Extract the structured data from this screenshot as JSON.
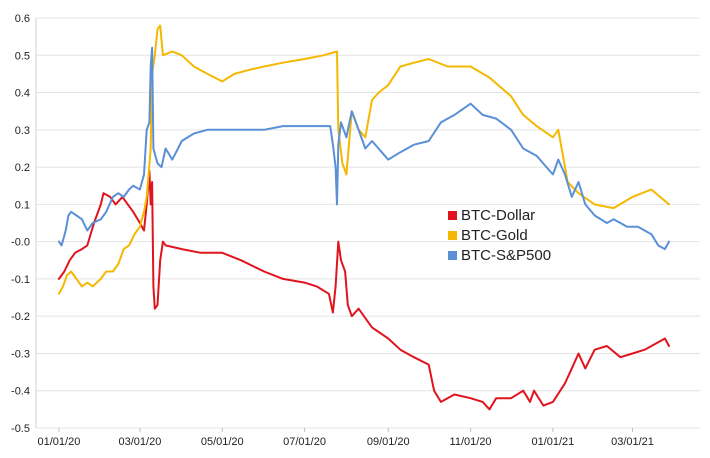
{
  "chart_data": {
    "type": "line",
    "title": "",
    "xlabel": "",
    "ylabel": "",
    "ylim": [
      -0.5,
      0.6
    ],
    "yticks": [
      0.6,
      0.5,
      0.4,
      0.3,
      0.2,
      0.1,
      0.0,
      -0.1,
      -0.2,
      -0.3,
      -0.4,
      -0.5
    ],
    "ytick_labels": [
      "0.6",
      "0.5",
      "0.4",
      "0.3",
      "0.2",
      "0.1",
      "-0.0",
      "-0.1",
      "-0.2",
      "-0.3",
      "-0.4",
      "-0.5"
    ],
    "xlim": [
      "2019-12-15",
      "2021-04-20"
    ],
    "xticks": [
      "2020-01-01",
      "2020-03-01",
      "2020-05-01",
      "2020-07-01",
      "2020-09-01",
      "2020-11-01",
      "2021-01-01",
      "2021-03-01"
    ],
    "xtick_labels": [
      "01/01/20",
      "03/01/20",
      "05/01/20",
      "07/01/20",
      "09/01/20",
      "11/01/20",
      "01/01/21",
      "03/01/21"
    ],
    "grid": "horizontal",
    "legend_position": "center-right",
    "series": [
      {
        "name": "BTC-Dollar",
        "color": "#e0141e",
        "points": [
          [
            "2020-01-01",
            -0.1
          ],
          [
            "2020-01-05",
            -0.08
          ],
          [
            "2020-01-09",
            -0.05
          ],
          [
            "2020-01-13",
            -0.03
          ],
          [
            "2020-01-18",
            -0.02
          ],
          [
            "2020-01-22",
            -0.01
          ],
          [
            "2020-01-27",
            0.05
          ],
          [
            "2020-02-01",
            0.1
          ],
          [
            "2020-02-03",
            0.13
          ],
          [
            "2020-02-08",
            0.12
          ],
          [
            "2020-02-12",
            0.1
          ],
          [
            "2020-02-17",
            0.12
          ],
          [
            "2020-02-21",
            0.1
          ],
          [
            "2020-02-25",
            0.08
          ],
          [
            "2020-03-01",
            0.05
          ],
          [
            "2020-03-04",
            0.03
          ],
          [
            "2020-03-06",
            0.1
          ],
          [
            "2020-03-08",
            0.19
          ],
          [
            "2020-03-09",
            0.1
          ],
          [
            "2020-03-10",
            0.16
          ],
          [
            "2020-03-11",
            -0.12
          ],
          [
            "2020-03-12",
            -0.18
          ],
          [
            "2020-03-14",
            -0.17
          ],
          [
            "2020-03-16",
            -0.05
          ],
          [
            "2020-03-18",
            0.0
          ],
          [
            "2020-03-20",
            -0.01
          ],
          [
            "2020-04-01",
            -0.02
          ],
          [
            "2020-04-15",
            -0.03
          ],
          [
            "2020-05-01",
            -0.03
          ],
          [
            "2020-05-15",
            -0.05
          ],
          [
            "2020-06-01",
            -0.08
          ],
          [
            "2020-06-15",
            -0.1
          ],
          [
            "2020-07-01",
            -0.11
          ],
          [
            "2020-07-10",
            -0.12
          ],
          [
            "2020-07-19",
            -0.14
          ],
          [
            "2020-07-22",
            -0.19
          ],
          [
            "2020-07-24",
            -0.12
          ],
          [
            "2020-07-26",
            0.0
          ],
          [
            "2020-07-28",
            -0.05
          ],
          [
            "2020-07-31",
            -0.08
          ],
          [
            "2020-08-02",
            -0.17
          ],
          [
            "2020-08-05",
            -0.2
          ],
          [
            "2020-08-10",
            -0.18
          ],
          [
            "2020-08-20",
            -0.23
          ],
          [
            "2020-09-01",
            -0.26
          ],
          [
            "2020-09-10",
            -0.29
          ],
          [
            "2020-09-20",
            -0.31
          ],
          [
            "2020-10-01",
            -0.33
          ],
          [
            "2020-10-05",
            -0.4
          ],
          [
            "2020-10-10",
            -0.43
          ],
          [
            "2020-10-20",
            -0.41
          ],
          [
            "2020-11-01",
            -0.42
          ],
          [
            "2020-11-10",
            -0.43
          ],
          [
            "2020-11-15",
            -0.45
          ],
          [
            "2020-11-20",
            -0.42
          ],
          [
            "2020-12-01",
            -0.42
          ],
          [
            "2020-12-10",
            -0.4
          ],
          [
            "2020-12-15",
            -0.43
          ],
          [
            "2020-12-18",
            -0.4
          ],
          [
            "2020-12-25",
            -0.44
          ],
          [
            "2021-01-01",
            -0.43
          ],
          [
            "2021-01-10",
            -0.38
          ],
          [
            "2021-01-15",
            -0.34
          ],
          [
            "2021-01-20",
            -0.3
          ],
          [
            "2021-01-25",
            -0.34
          ],
          [
            "2021-02-01",
            -0.29
          ],
          [
            "2021-02-10",
            -0.28
          ],
          [
            "2021-02-20",
            -0.31
          ],
          [
            "2021-03-01",
            -0.3
          ],
          [
            "2021-03-10",
            -0.29
          ],
          [
            "2021-03-20",
            -0.27
          ],
          [
            "2021-03-25",
            -0.26
          ],
          [
            "2021-03-28",
            -0.28
          ]
        ]
      },
      {
        "name": "BTC-Gold",
        "color": "#f5b800",
        "points": [
          [
            "2020-01-01",
            -0.14
          ],
          [
            "2020-01-04",
            -0.12
          ],
          [
            "2020-01-07",
            -0.09
          ],
          [
            "2020-01-10",
            -0.08
          ],
          [
            "2020-01-14",
            -0.1
          ],
          [
            "2020-01-18",
            -0.12
          ],
          [
            "2020-01-22",
            -0.11
          ],
          [
            "2020-01-26",
            -0.12
          ],
          [
            "2020-02-01",
            -0.1
          ],
          [
            "2020-02-05",
            -0.08
          ],
          [
            "2020-02-10",
            -0.08
          ],
          [
            "2020-02-14",
            -0.06
          ],
          [
            "2020-02-18",
            -0.02
          ],
          [
            "2020-02-22",
            -0.01
          ],
          [
            "2020-02-26",
            0.02
          ],
          [
            "2020-03-01",
            0.04
          ],
          [
            "2020-03-04",
            0.08
          ],
          [
            "2020-03-06",
            0.12
          ],
          [
            "2020-03-09",
            0.25
          ],
          [
            "2020-03-10",
            0.45
          ],
          [
            "2020-03-12",
            0.5
          ],
          [
            "2020-03-14",
            0.57
          ],
          [
            "2020-03-16",
            0.58
          ],
          [
            "2020-03-18",
            0.5
          ],
          [
            "2020-03-25",
            0.51
          ],
          [
            "2020-04-01",
            0.5
          ],
          [
            "2020-04-10",
            0.47
          ],
          [
            "2020-04-20",
            0.45
          ],
          [
            "2020-05-01",
            0.43
          ],
          [
            "2020-05-10",
            0.45
          ],
          [
            "2020-05-20",
            0.46
          ],
          [
            "2020-06-01",
            0.47
          ],
          [
            "2020-06-15",
            0.48
          ],
          [
            "2020-07-01",
            0.49
          ],
          [
            "2020-07-15",
            0.5
          ],
          [
            "2020-07-25",
            0.51
          ],
          [
            "2020-07-26",
            0.3
          ],
          [
            "2020-07-29",
            0.21
          ],
          [
            "2020-08-01",
            0.18
          ],
          [
            "2020-08-05",
            0.35
          ],
          [
            "2020-08-10",
            0.3
          ],
          [
            "2020-08-15",
            0.28
          ],
          [
            "2020-08-20",
            0.38
          ],
          [
            "2020-08-25",
            0.4
          ],
          [
            "2020-09-01",
            0.42
          ],
          [
            "2020-09-10",
            0.47
          ],
          [
            "2020-09-20",
            0.48
          ],
          [
            "2020-10-01",
            0.49
          ],
          [
            "2020-10-15",
            0.47
          ],
          [
            "2020-11-01",
            0.47
          ],
          [
            "2020-11-15",
            0.44
          ],
          [
            "2020-12-01",
            0.39
          ],
          [
            "2020-12-10",
            0.34
          ],
          [
            "2020-12-20",
            0.31
          ],
          [
            "2021-01-01",
            0.28
          ],
          [
            "2021-01-05",
            0.3
          ],
          [
            "2021-01-10",
            0.2
          ],
          [
            "2021-01-12",
            0.16
          ],
          [
            "2021-01-20",
            0.13
          ],
          [
            "2021-02-01",
            0.1
          ],
          [
            "2021-02-15",
            0.09
          ],
          [
            "2021-03-01",
            0.12
          ],
          [
            "2021-03-15",
            0.14
          ],
          [
            "2021-03-28",
            0.1
          ]
        ]
      },
      {
        "name": "BTC-S&P500",
        "color": "#5b8fd6",
        "points": [
          [
            "2020-01-01",
            0.0
          ],
          [
            "2020-01-03",
            -0.01
          ],
          [
            "2020-01-06",
            0.03
          ],
          [
            "2020-01-08",
            0.07
          ],
          [
            "2020-01-10",
            0.08
          ],
          [
            "2020-01-14",
            0.07
          ],
          [
            "2020-01-18",
            0.06
          ],
          [
            "2020-01-22",
            0.03
          ],
          [
            "2020-01-26",
            0.05
          ],
          [
            "2020-02-01",
            0.06
          ],
          [
            "2020-02-05",
            0.08
          ],
          [
            "2020-02-10",
            0.12
          ],
          [
            "2020-02-14",
            0.13
          ],
          [
            "2020-02-18",
            0.12
          ],
          [
            "2020-02-22",
            0.14
          ],
          [
            "2020-02-25",
            0.15
          ],
          [
            "2020-03-01",
            0.14
          ],
          [
            "2020-03-04",
            0.18
          ],
          [
            "2020-03-06",
            0.3
          ],
          [
            "2020-03-08",
            0.32
          ],
          [
            "2020-03-09",
            0.47
          ],
          [
            "2020-03-10",
            0.52
          ],
          [
            "2020-03-11",
            0.25
          ],
          [
            "2020-03-14",
            0.21
          ],
          [
            "2020-03-17",
            0.2
          ],
          [
            "2020-03-20",
            0.25
          ],
          [
            "2020-03-25",
            0.22
          ],
          [
            "2020-04-01",
            0.27
          ],
          [
            "2020-04-10",
            0.29
          ],
          [
            "2020-04-20",
            0.3
          ],
          [
            "2020-05-01",
            0.3
          ],
          [
            "2020-05-15",
            0.3
          ],
          [
            "2020-06-01",
            0.3
          ],
          [
            "2020-06-15",
            0.31
          ],
          [
            "2020-07-01",
            0.31
          ],
          [
            "2020-07-15",
            0.31
          ],
          [
            "2020-07-20",
            0.31
          ],
          [
            "2020-07-22",
            0.26
          ],
          [
            "2020-07-24",
            0.2
          ],
          [
            "2020-07-25",
            0.1
          ],
          [
            "2020-07-26",
            0.26
          ],
          [
            "2020-07-28",
            0.32
          ],
          [
            "2020-08-01",
            0.28
          ],
          [
            "2020-08-05",
            0.35
          ],
          [
            "2020-08-10",
            0.3
          ],
          [
            "2020-08-15",
            0.25
          ],
          [
            "2020-08-20",
            0.27
          ],
          [
            "2020-09-01",
            0.22
          ],
          [
            "2020-09-10",
            0.24
          ],
          [
            "2020-09-20",
            0.26
          ],
          [
            "2020-10-01",
            0.27
          ],
          [
            "2020-10-10",
            0.32
          ],
          [
            "2020-10-20",
            0.34
          ],
          [
            "2020-11-01",
            0.37
          ],
          [
            "2020-11-10",
            0.34
          ],
          [
            "2020-11-20",
            0.33
          ],
          [
            "2020-12-01",
            0.3
          ],
          [
            "2020-12-10",
            0.25
          ],
          [
            "2020-12-20",
            0.23
          ],
          [
            "2021-01-01",
            0.18
          ],
          [
            "2021-01-05",
            0.22
          ],
          [
            "2021-01-10",
            0.18
          ],
          [
            "2021-01-15",
            0.12
          ],
          [
            "2021-01-20",
            0.16
          ],
          [
            "2021-01-25",
            0.1
          ],
          [
            "2021-02-01",
            0.07
          ],
          [
            "2021-02-10",
            0.05
          ],
          [
            "2021-02-15",
            0.06
          ],
          [
            "2021-02-25",
            0.04
          ],
          [
            "2021-03-05",
            0.04
          ],
          [
            "2021-03-15",
            0.02
          ],
          [
            "2021-03-20",
            -0.01
          ],
          [
            "2021-03-25",
            -0.02
          ],
          [
            "2021-03-28",
            0.0
          ]
        ]
      }
    ]
  }
}
